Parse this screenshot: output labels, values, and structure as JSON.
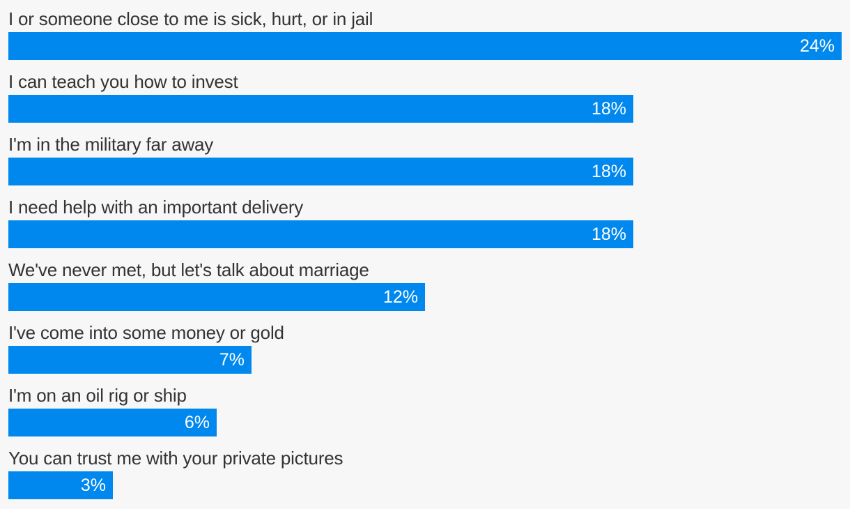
{
  "colors": {
    "bar": "#0088ee",
    "background": "#f7f7f7",
    "label": "#333333",
    "value": "#ffffff"
  },
  "chart_data": {
    "type": "bar",
    "orientation": "horizontal",
    "title": "",
    "xlabel": "",
    "ylabel": "",
    "unit": "%",
    "xlim": [
      0,
      24
    ],
    "categories": [
      "I or someone close to me is sick, hurt, or in jail",
      "I can teach you how to invest",
      "I'm in the military far away",
      "I need help with an important delivery",
      "We've never met, but let's talk about marriage",
      "I've come into some money or gold",
      "I'm on an oil rig or ship",
      "You can trust me with your private pictures"
    ],
    "values": [
      24,
      18,
      18,
      18,
      12,
      7,
      6,
      3
    ],
    "data_labels": [
      "24%",
      "18%",
      "18%",
      "18%",
      "12%",
      "7%",
      "6%",
      "3%"
    ]
  }
}
